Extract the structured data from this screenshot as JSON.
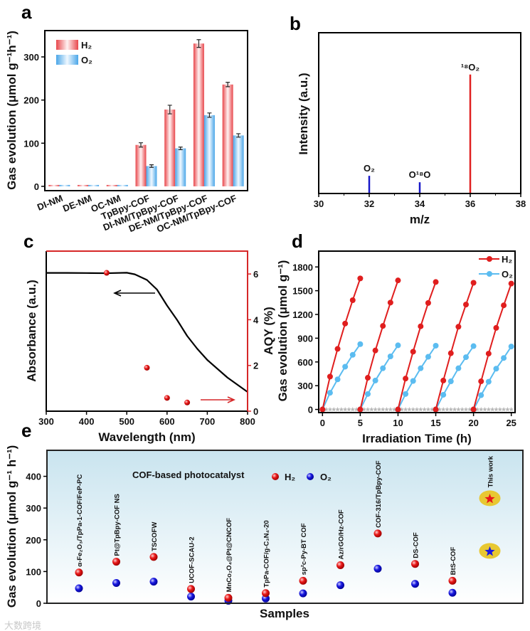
{
  "figure": {
    "panel_labels": [
      "a",
      "b",
      "c",
      "d",
      "e"
    ],
    "watermark": "大数跨境"
  },
  "chart_data": [
    {
      "panel": "a",
      "type": "bar",
      "categories": [
        "DI-NM",
        "DE-NM",
        "OC-NM",
        "TpBpy-COF",
        "DI-NM/TpBpy-COF",
        "DE-NM/TpBpy-COF",
        "OC-NM/TpBpy-COF"
      ],
      "series": [
        {
          "name": "H₂",
          "values": [
            0,
            0,
            0,
            96,
            178,
            331,
            236
          ],
          "errors": [
            0,
            0,
            0,
            5,
            10,
            9,
            5
          ],
          "color": "#e8474c"
        },
        {
          "name": "O₂",
          "values": [
            0,
            0,
            0,
            47,
            88,
            165,
            118
          ],
          "errors": [
            0,
            0,
            0,
            3,
            3,
            5,
            4
          ],
          "color": "#4aa6e8"
        }
      ],
      "xlabel": "",
      "ylabel": "Gas evolution (μmol g⁻¹h⁻¹)",
      "ylim": [
        -10,
        361
      ],
      "yticks": [
        0,
        100,
        200,
        300
      ],
      "legend": "top-left"
    },
    {
      "panel": "b",
      "type": "bar",
      "x": [
        32,
        34,
        36
      ],
      "values": [
        11,
        7,
        74
      ],
      "peak_labels": [
        "O₂",
        "O¹⁸O",
        "¹⁸O₂"
      ],
      "colors": [
        "#1818c8",
        "#1818c8",
        "#e02020"
      ],
      "xlabel": "m/z",
      "ylabel": "Intensity (a.u.)",
      "xlim": [
        30,
        38
      ],
      "xticks": [
        30,
        32,
        34,
        36,
        38
      ],
      "ylim": [
        0,
        100
      ]
    },
    {
      "panel": "c",
      "type": "line",
      "xlabel": "Wavelength (nm)",
      "ylabel": "Absorbance (a.u.)",
      "y2label": "AQY (%)",
      "xlim": [
        300,
        800
      ],
      "xticks": [
        300,
        400,
        500,
        600,
        700,
        800
      ],
      "absorbance": {
        "x": [
          300,
          350,
          400,
          450,
          500,
          520,
          550,
          575,
          600,
          625,
          650,
          675,
          700,
          750,
          800
        ],
        "y": [
          0.864,
          0.864,
          0.863,
          0.862,
          0.865,
          0.855,
          0.82,
          0.76,
          0.66,
          0.57,
          0.47,
          0.39,
          0.32,
          0.21,
          0.12
        ]
      },
      "ylim": [
        0,
        1
      ],
      "aqy": {
        "x": [
          450,
          550,
          600,
          650
        ],
        "y": [
          6.05,
          1.9,
          0.58,
          0.38
        ]
      },
      "y2lim": [
        0,
        7
      ],
      "y2ticks": [
        0,
        2,
        4,
        6
      ],
      "aqy_color": "#d62728"
    },
    {
      "panel": "d",
      "type": "line",
      "xlabel": "Irradiation Time (h)",
      "ylabel": "Gas evolution (μmol g⁻¹)",
      "xlim": [
        -0.5,
        25.5
      ],
      "ylim": [
        -40,
        2000
      ],
      "xticks": [
        0,
        5,
        10,
        15,
        20,
        25
      ],
      "yticks": [
        0,
        300,
        600,
        900,
        1200,
        1500,
        1800
      ],
      "cycle_start_hours": [
        0,
        5,
        10,
        15,
        20
      ],
      "cycle_hours": [
        0,
        1,
        2,
        3,
        4,
        5
      ],
      "series": [
        {
          "name": "H₂",
          "color": "#e01e1e",
          "cycles": [
            [
              0,
              415,
              765,
              1085,
              1380,
              1655
            ],
            [
              0,
              400,
              745,
              1055,
              1350,
              1630
            ],
            [
              0,
              390,
              730,
              1050,
              1345,
              1610
            ],
            [
              0,
              365,
              710,
              1045,
              1325,
              1600
            ],
            [
              0,
              355,
              705,
              1030,
              1315,
              1590
            ]
          ]
        },
        {
          "name": "O₂",
          "color": "#5bbcf0",
          "cycles": [
            [
              0,
              210,
              380,
              540,
              690,
              825
            ],
            [
              0,
              195,
              365,
              520,
              670,
              810
            ],
            [
              0,
              195,
              360,
              520,
              665,
              805
            ],
            [
              0,
              185,
              355,
              520,
              660,
              800
            ],
            [
              0,
              180,
              350,
              515,
              650,
              795
            ]
          ]
        }
      ],
      "control": {
        "color": "#b8b8b8",
        "step_hours": 0.5,
        "value": 0
      },
      "legend": "top-right"
    },
    {
      "panel": "e",
      "type": "scatter",
      "xlabel": "Samples",
      "ylabel": "Gas evolution (μmol g⁻¹ h⁻¹)",
      "legend_title": "COF-based photocatalyst",
      "categories": [
        "α-Fe₂O₃/TpPa-1-COF/FeP-PC",
        "Pt@TpBpy-COF NS",
        "TSCOFW",
        "UCOF-SCAU-2",
        "MnCo₂O₄@Pt@CNCOF",
        "TpPa-COF/g-C₃N₄-20",
        "sp²c-Py-BT COF",
        "Az/rGO/Hz-COF",
        "COF-316/TpBpy-COF",
        "DS-COF",
        "BtS-COF",
        "This work"
      ],
      "series": [
        {
          "name": "H₂",
          "color": "#e81818",
          "values": [
            97,
            131,
            146,
            45,
            17,
            32,
            71,
            120,
            220,
            124,
            71,
            331
          ]
        },
        {
          "name": "O₂",
          "color": "#1818e0",
          "values": [
            47,
            64,
            68,
            21,
            8,
            15,
            31,
            57,
            109,
            61,
            33,
            165
          ]
        }
      ],
      "highlight": "This work",
      "ylim": [
        0,
        482
      ],
      "yticks": [
        0,
        100,
        200,
        300,
        400
      ]
    }
  ]
}
